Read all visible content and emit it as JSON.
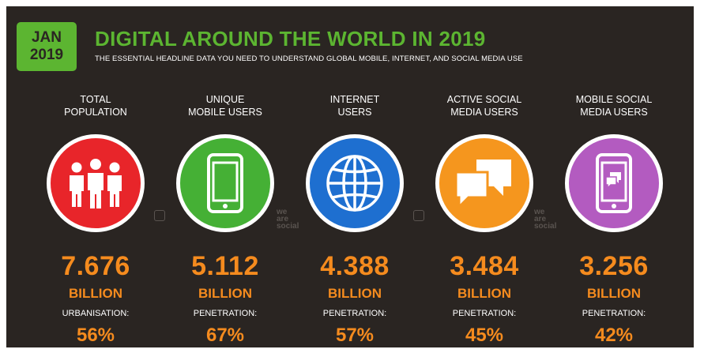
{
  "badge": {
    "month": "JAN",
    "year": "2019"
  },
  "headline": "DIGITAL AROUND THE WORLD IN 2019",
  "subhead": "THE ESSENTIAL HEADLINE DATA YOU NEED TO UNDERSTAND GLOBAL MOBILE, INTERNET, AND SOCIAL MEDIA USE",
  "stats": [
    {
      "label_line1": "TOTAL",
      "label_line2": "POPULATION",
      "value": "7.676",
      "unit": "BILLION",
      "metric_label": "URBANISATION:",
      "metric_value": "56%",
      "color": "#e8252a",
      "icon": "people-icon"
    },
    {
      "label_line1": "UNIQUE",
      "label_line2": "MOBILE USERS",
      "value": "5.112",
      "unit": "BILLION",
      "metric_label": "PENETRATION:",
      "metric_value": "67%",
      "color": "#45b035",
      "icon": "mobile-phone-icon"
    },
    {
      "label_line1": "INTERNET",
      "label_line2": "USERS",
      "value": "4.388",
      "unit": "BILLION",
      "metric_label": "PENETRATION:",
      "metric_value": "57%",
      "color": "#1e6fd0",
      "icon": "globe-icon"
    },
    {
      "label_line1": "ACTIVE SOCIAL",
      "label_line2": "MEDIA USERS",
      "value": "3.484",
      "unit": "BILLION",
      "metric_label": "PENETRATION:",
      "metric_value": "45%",
      "color": "#f5961e",
      "icon": "speech-bubbles-icon"
    },
    {
      "label_line1": "MOBILE SOCIAL",
      "label_line2": "MEDIA USERS",
      "value": "3.256",
      "unit": "BILLION",
      "metric_label": "PENETRATION:",
      "metric_value": "42%",
      "color": "#b35bc0",
      "icon": "mobile-chat-icon"
    }
  ],
  "brand": {
    "line1": "we",
    "line2": "are",
    "line3": "social"
  }
}
